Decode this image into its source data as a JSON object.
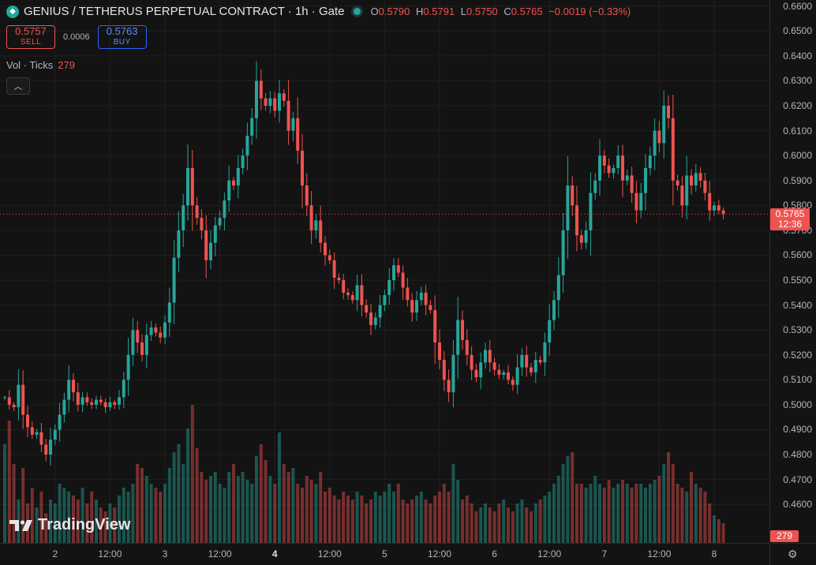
{
  "header": {
    "symbol_title": "GENIUS / TETHERUS PERPETUAL CONTRACT · 1h · Gate",
    "coin_icon": "diamond-icon",
    "ohlc": {
      "o_label": "O",
      "o": "0.5790",
      "h_label": "H",
      "h": "0.5791",
      "l_label": "L",
      "l": "0.5750",
      "c_label": "C",
      "c": "0.5765",
      "change": "−0.0019 (−0.33%)"
    }
  },
  "trade": {
    "sell_price": "0.5757",
    "sell_label": "SELL",
    "spread": "0.0006",
    "buy_price": "0.5763",
    "buy_label": "BUY"
  },
  "volume_legend": {
    "label": "Vol · Ticks",
    "value": "279"
  },
  "last_price_tag": {
    "price": "0.5765",
    "countdown": "12:36"
  },
  "volume_tag": "279",
  "logo_text": "TradingView",
  "colors": {
    "up": "#26a69a",
    "down": "#ef5350",
    "background": "#131313"
  },
  "chart_data": {
    "type": "candlestick",
    "title": "GENIUS / TETHERUS PERPETUAL CONTRACT · 1h · Gate",
    "ylim": [
      0.455,
      0.6615
    ],
    "y_ticks": [
      "0.4600",
      "0.4700",
      "0.4800",
      "0.4900",
      "0.5000",
      "0.5100",
      "0.5200",
      "0.5300",
      "0.5400",
      "0.5500",
      "0.5600",
      "0.5700",
      "0.5800",
      "0.5900",
      "0.6000",
      "0.6100",
      "0.6200",
      "0.6300",
      "0.6400",
      "0.6500",
      "0.6600"
    ],
    "x_ticks": [
      {
        "label": "2",
        "index": 11,
        "bold": false
      },
      {
        "label": "12:00",
        "index": 23,
        "bold": false
      },
      {
        "label": "3",
        "index": 35,
        "bold": false
      },
      {
        "label": "12:00",
        "index": 47,
        "bold": false
      },
      {
        "label": "4",
        "index": 59,
        "bold": true
      },
      {
        "label": "12:00",
        "index": 71,
        "bold": false
      },
      {
        "label": "5",
        "index": 83,
        "bold": false
      },
      {
        "label": "12:00",
        "index": 95,
        "bold": false
      },
      {
        "label": "6",
        "index": 107,
        "bold": false
      },
      {
        "label": "12:00",
        "index": 119,
        "bold": false
      },
      {
        "label": "7",
        "index": 131,
        "bold": false
      },
      {
        "label": "12:00",
        "index": 143,
        "bold": false
      },
      {
        "label": "8",
        "index": 155,
        "bold": false
      }
    ],
    "last_price": 0.5765,
    "close": [
      0.503,
      0.5,
      0.499,
      0.508,
      0.496,
      0.491,
      0.488,
      0.489,
      0.484,
      0.48,
      0.486,
      0.49,
      0.496,
      0.502,
      0.51,
      0.505,
      0.5,
      0.503,
      0.501,
      0.5,
      0.502,
      0.501,
      0.499,
      0.501,
      0.5,
      0.503,
      0.51,
      0.52,
      0.53,
      0.525,
      0.52,
      0.528,
      0.531,
      0.529,
      0.527,
      0.533,
      0.541,
      0.559,
      0.57,
      0.58,
      0.595,
      0.58,
      0.575,
      0.57,
      0.558,
      0.565,
      0.572,
      0.575,
      0.582,
      0.59,
      0.588,
      0.595,
      0.6,
      0.608,
      0.615,
      0.63,
      0.623,
      0.62,
      0.623,
      0.618,
      0.625,
      0.622,
      0.61,
      0.615,
      0.602,
      0.588,
      0.58,
      0.57,
      0.574,
      0.565,
      0.56,
      0.558,
      0.551,
      0.55,
      0.545,
      0.544,
      0.542,
      0.548,
      0.54,
      0.537,
      0.532,
      0.535,
      0.54,
      0.544,
      0.55,
      0.556,
      0.553,
      0.547,
      0.542,
      0.537,
      0.542,
      0.545,
      0.54,
      0.538,
      0.525,
      0.518,
      0.51,
      0.505,
      0.52,
      0.534,
      0.526,
      0.52,
      0.514,
      0.511,
      0.517,
      0.522,
      0.517,
      0.514,
      0.512,
      0.513,
      0.51,
      0.508,
      0.515,
      0.52,
      0.515,
      0.513,
      0.518,
      0.517,
      0.525,
      0.534,
      0.542,
      0.552,
      0.57,
      0.588,
      0.58,
      0.568,
      0.565,
      0.57,
      0.585,
      0.59,
      0.6,
      0.596,
      0.593,
      0.595,
      0.6,
      0.59,
      0.592,
      0.585,
      0.578,
      0.585,
      0.595,
      0.6,
      0.61,
      0.605,
      0.62,
      0.615,
      0.59,
      0.588,
      0.58,
      0.592,
      0.588,
      0.593,
      0.59,
      0.585,
      0.578,
      0.58,
      0.578,
      0.5765
    ],
    "volume": [
      50,
      62,
      40,
      22,
      38,
      20,
      28,
      18,
      26,
      15,
      22,
      20,
      30,
      28,
      26,
      24,
      22,
      28,
      20,
      26,
      22,
      18,
      16,
      20,
      18,
      24,
      28,
      26,
      30,
      40,
      38,
      34,
      30,
      28,
      26,
      30,
      38,
      46,
      50,
      40,
      58,
      70,
      48,
      36,
      32,
      34,
      36,
      30,
      28,
      36,
      40,
      34,
      36,
      32,
      30,
      44,
      50,
      42,
      34,
      30,
      56,
      40,
      36,
      38,
      30,
      28,
      34,
      32,
      30,
      36,
      26,
      28,
      24,
      22,
      26,
      24,
      22,
      26,
      24,
      20,
      22,
      26,
      24,
      26,
      30,
      26,
      30,
      22,
      20,
      22,
      24,
      26,
      22,
      20,
      24,
      26,
      30,
      26,
      40,
      32,
      22,
      24,
      20,
      16,
      18,
      20,
      18,
      16,
      20,
      22,
      18,
      16,
      20,
      22,
      18,
      16,
      20,
      22,
      24,
      26,
      30,
      34,
      40,
      44,
      46,
      30,
      30,
      28,
      30,
      34,
      30,
      28,
      32,
      28,
      30,
      32,
      30,
      28,
      30,
      30,
      28,
      30,
      32,
      34,
      40,
      46,
      40,
      30,
      28,
      26,
      36,
      30,
      28,
      26,
      20,
      14,
      12,
      10
    ]
  }
}
